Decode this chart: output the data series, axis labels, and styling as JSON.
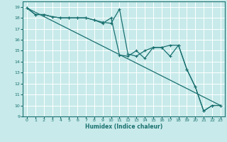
{
  "title": "",
  "xlabel": "Humidex (Indice chaleur)",
  "ylabel": "",
  "bg_color": "#c8eaea",
  "grid_color": "#b0d8d8",
  "line_color": "#1a7070",
  "xlim": [
    -0.5,
    23.5
  ],
  "ylim": [
    9,
    19.5
  ],
  "xticks": [
    0,
    1,
    2,
    3,
    4,
    5,
    6,
    7,
    8,
    9,
    10,
    11,
    12,
    13,
    14,
    15,
    16,
    17,
    18,
    19,
    20,
    21,
    22,
    23
  ],
  "yticks": [
    9,
    10,
    11,
    12,
    13,
    14,
    15,
    16,
    17,
    18,
    19
  ],
  "series1": {
    "x": [
      0,
      1,
      2,
      3,
      4,
      5,
      6,
      7,
      8,
      9,
      10,
      11,
      12,
      13,
      14,
      15,
      16,
      17,
      18,
      19,
      20,
      21,
      22,
      23
    ],
    "y": [
      18.9,
      18.3,
      18.3,
      18.1,
      18.0,
      18.0,
      18.0,
      18.0,
      17.8,
      17.6,
      17.5,
      18.8,
      14.7,
      14.5,
      15.0,
      15.3,
      15.3,
      15.5,
      15.5,
      13.3,
      11.7,
      9.5,
      10.0,
      10.0
    ]
  },
  "series2": {
    "x": [
      0,
      1,
      2,
      3,
      4,
      5,
      6,
      7,
      8,
      9,
      10,
      11,
      12,
      13,
      14,
      15,
      16,
      17,
      18,
      19,
      20,
      21,
      22,
      23
    ],
    "y": [
      18.9,
      18.3,
      18.3,
      18.1,
      18.0,
      18.0,
      18.0,
      18.0,
      17.8,
      17.5,
      18.0,
      14.6,
      14.5,
      15.0,
      14.3,
      15.3,
      15.3,
      14.5,
      15.5,
      13.3,
      11.7,
      9.5,
      10.0,
      10.0
    ]
  },
  "series3": {
    "x": [
      0,
      23
    ],
    "y": [
      18.9,
      10.0
    ]
  }
}
